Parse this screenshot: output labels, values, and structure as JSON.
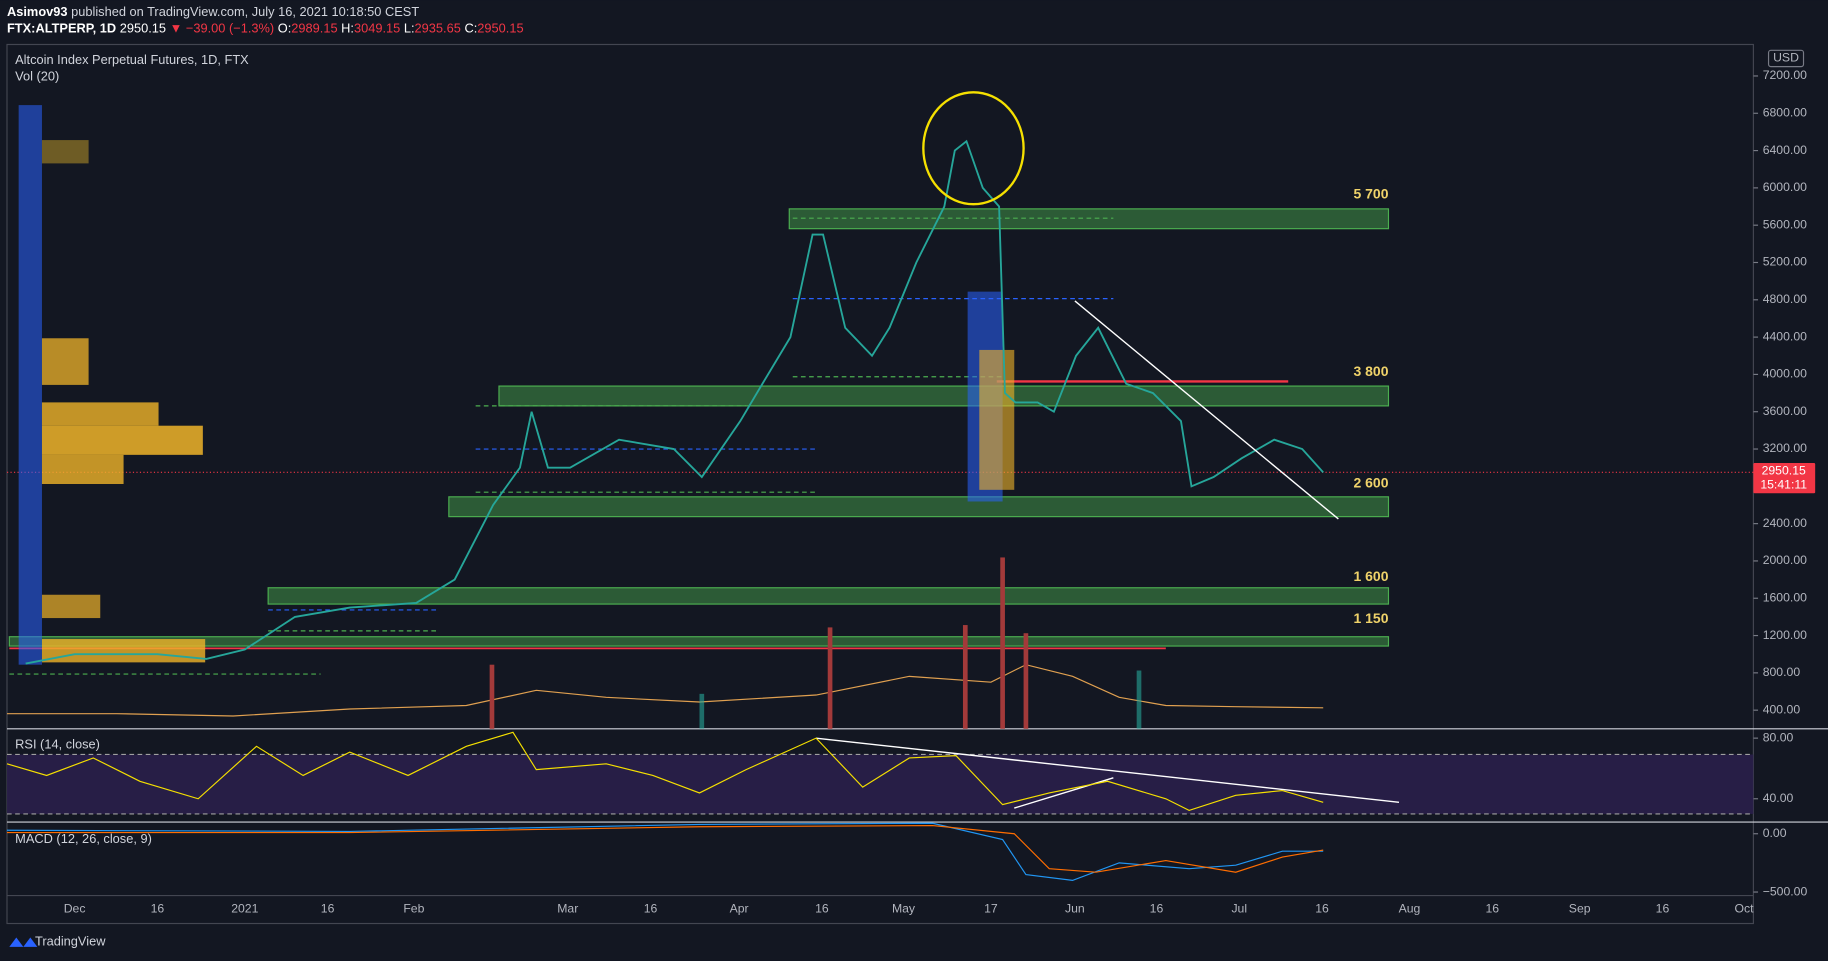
{
  "header": {
    "publisher": "Asimov93",
    "published": "published on TradingView.com, July 16, 2021 10:18:50 CEST",
    "symbol": "FTX:ALTPERP, 1D",
    "last": "2950.15",
    "change": "▼ −39.00 (−1.3%)",
    "open_label": "O:",
    "open": "2989.15",
    "high_label": "H:",
    "high": "3049.15",
    "low_label": "L:",
    "low": "2935.65",
    "close_label": "C:",
    "close": "2950.15"
  },
  "legend": {
    "title": "Altcoin Index Perpetual Futures, 1D, FTX",
    "volume": "Vol (20)",
    "rsi": "RSI (14, close)",
    "macd": "MACD (12, 26, close, 9)"
  },
  "price_axis": {
    "currency": "USD",
    "ticks": [
      {
        "value": 7200,
        "label": "7200.00"
      },
      {
        "value": 6800,
        "label": "6800.00"
      },
      {
        "value": 6400,
        "label": "6400.00"
      },
      {
        "value": 6000,
        "label": "6000.00"
      },
      {
        "value": 5600,
        "label": "5600.00"
      },
      {
        "value": 5200,
        "label": "5200.00"
      },
      {
        "value": 4800,
        "label": "4800.00"
      },
      {
        "value": 4400,
        "label": "4400.00"
      },
      {
        "value": 4000,
        "label": "4000.00"
      },
      {
        "value": 3600,
        "label": "3600.00"
      },
      {
        "value": 3200,
        "label": "3200.00"
      },
      {
        "value": 2400,
        "label": "2400.00"
      },
      {
        "value": 2000,
        "label": "2000.00"
      },
      {
        "value": 1600,
        "label": "1600.00"
      },
      {
        "value": 1200,
        "label": "1200.00"
      },
      {
        "value": 800,
        "label": "800.00"
      },
      {
        "value": 400,
        "label": "400.00"
      }
    ],
    "current_price": {
      "value": 2950.15,
      "label": "2950.15"
    },
    "countdown": "15:41:11"
  },
  "levels": [
    {
      "value": 5700,
      "label": "5 700"
    },
    {
      "value": 3800,
      "label": "3 800"
    },
    {
      "value": 2600,
      "label": "2 600"
    },
    {
      "value": 1600,
      "label": "1 600"
    },
    {
      "value": 1150,
      "label": "1 150"
    }
  ],
  "rsi_axis": {
    "ticks": [
      {
        "value": 80,
        "label": "80.00"
      },
      {
        "value": 40,
        "label": "40.00"
      }
    ]
  },
  "macd_axis": {
    "ticks": [
      {
        "value": 0,
        "label": "0.00"
      },
      {
        "value": -500,
        "label": "−500.00"
      }
    ]
  },
  "time_axis": [
    "Dec",
    "16",
    "2021",
    "16",
    "Feb",
    "Mar",
    "16",
    "Apr",
    "16",
    "May",
    "17",
    "Jun",
    "16",
    "Jul",
    "16",
    "Aug",
    "16",
    "Sep",
    "16",
    "Oct"
  ],
  "footer": "TradingView"
}
